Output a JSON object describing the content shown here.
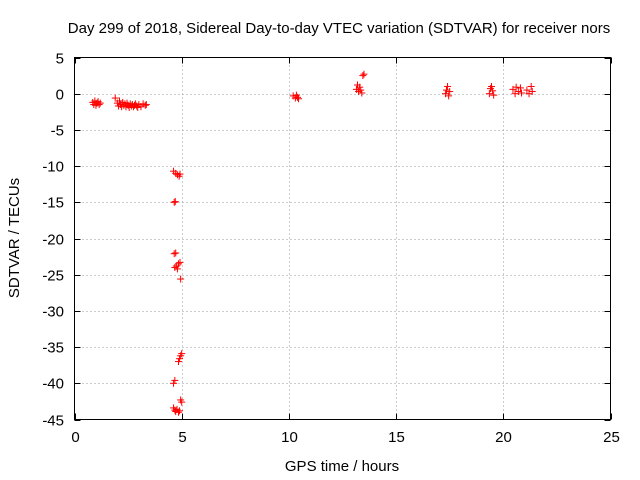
{
  "chart_data": {
    "type": "scatter",
    "title": "Day 299 of 2018, Sidereal Day-to-day VTEC variation (SDTVAR) for receiver nors",
    "xlabel": "GPS time / hours",
    "ylabel": "SDTVAR / TECUs",
    "xlim": [
      0,
      25
    ],
    "ylim": [
      -45,
      5
    ],
    "xticks": [
      "0",
      "5",
      "10",
      "15",
      "20",
      "25"
    ],
    "yticks": [
      "5",
      "0",
      "-5",
      "-10",
      "-15",
      "-20",
      "-25",
      "-30",
      "-35",
      "-40",
      "-45"
    ],
    "grid": true,
    "marker": "+",
    "color": "#ff0000",
    "series": [
      {
        "name": "SDTVAR",
        "points": [
          [
            0.85,
            -1.2
          ],
          [
            0.9,
            -1.5
          ],
          [
            0.95,
            -1.0
          ],
          [
            1.0,
            -1.6
          ],
          [
            1.05,
            -1.3
          ],
          [
            1.1,
            -1.1
          ],
          [
            1.15,
            -1.5
          ],
          [
            1.2,
            -1.3
          ],
          [
            1.9,
            -0.6
          ],
          [
            2.0,
            -1.3
          ],
          [
            2.05,
            -1.7
          ],
          [
            2.1,
            -1.0
          ],
          [
            2.15,
            -1.5
          ],
          [
            2.2,
            -1.8
          ],
          [
            2.25,
            -1.2
          ],
          [
            2.3,
            -1.6
          ],
          [
            2.35,
            -1.4
          ],
          [
            2.4,
            -1.8
          ],
          [
            2.45,
            -1.3
          ],
          [
            2.5,
            -1.6
          ],
          [
            2.55,
            -1.9
          ],
          [
            2.6,
            -1.4
          ],
          [
            2.65,
            -1.7
          ],
          [
            2.7,
            -1.5
          ],
          [
            2.75,
            -1.8
          ],
          [
            2.8,
            -1.6
          ],
          [
            2.85,
            -1.4
          ],
          [
            2.9,
            -1.7
          ],
          [
            2.95,
            -1.9
          ],
          [
            3.0,
            -1.5
          ],
          [
            3.1,
            -1.8
          ],
          [
            3.2,
            -1.4
          ],
          [
            3.3,
            -1.6
          ],
          [
            3.35,
            -1.5
          ],
          [
            4.62,
            -10.7
          ],
          [
            4.72,
            -11.0
          ],
          [
            4.8,
            -11.2
          ],
          [
            4.88,
            -11.4
          ],
          [
            4.92,
            -11.1
          ],
          [
            4.65,
            -15.0
          ],
          [
            4.7,
            -14.9
          ],
          [
            4.65,
            -22.1
          ],
          [
            4.72,
            -22.0
          ],
          [
            4.68,
            -24.0
          ],
          [
            4.75,
            -23.8
          ],
          [
            4.8,
            -24.2
          ],
          [
            4.85,
            -23.5
          ],
          [
            4.92,
            -23.3
          ],
          [
            4.95,
            -25.6
          ],
          [
            4.85,
            -37.0
          ],
          [
            4.9,
            -36.6
          ],
          [
            4.95,
            -36.2
          ],
          [
            5.0,
            -35.9
          ],
          [
            4.62,
            -40.0
          ],
          [
            4.68,
            -39.6
          ],
          [
            4.95,
            -42.3
          ],
          [
            5.0,
            -42.6
          ],
          [
            4.62,
            -43.4
          ],
          [
            4.68,
            -43.7
          ],
          [
            4.72,
            -43.9
          ],
          [
            4.78,
            -43.6
          ],
          [
            4.85,
            -44.0
          ],
          [
            4.9,
            -43.8
          ],
          [
            10.2,
            -0.3
          ],
          [
            10.3,
            -0.6
          ],
          [
            10.35,
            -0.2
          ],
          [
            10.4,
            -0.5
          ],
          [
            10.45,
            -0.7
          ],
          [
            13.15,
            0.6
          ],
          [
            13.2,
            1.2
          ],
          [
            13.25,
            0.3
          ],
          [
            13.3,
            0.9
          ],
          [
            13.35,
            0.5
          ],
          [
            13.4,
            0.1
          ],
          [
            13.45,
            2.5
          ],
          [
            13.5,
            2.7
          ],
          [
            17.3,
            0.0
          ],
          [
            17.35,
            0.5
          ],
          [
            17.4,
            1.0
          ],
          [
            17.45,
            -0.3
          ],
          [
            17.5,
            0.3
          ],
          [
            19.35,
            0.0
          ],
          [
            19.4,
            0.7
          ],
          [
            19.45,
            1.0
          ],
          [
            19.5,
            0.4
          ],
          [
            19.55,
            -0.2
          ],
          [
            20.45,
            0.6
          ],
          [
            20.55,
            0.0
          ],
          [
            20.6,
            0.9
          ],
          [
            20.7,
            0.3
          ],
          [
            20.8,
            0.8
          ],
          [
            20.85,
            0.1
          ],
          [
            21.1,
            0.5
          ],
          [
            21.2,
            0.0
          ],
          [
            21.3,
            1.0
          ],
          [
            21.35,
            0.3
          ]
        ]
      }
    ]
  }
}
